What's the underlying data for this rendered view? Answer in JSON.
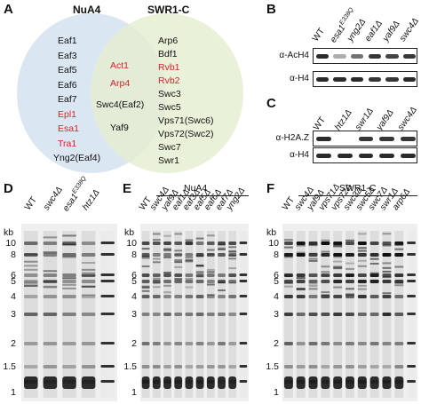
{
  "panels": {
    "A": {
      "letter": "A",
      "left_title": "NuA4",
      "right_title": "SWR1-C",
      "nua4_only": [
        "Eaf1",
        "Eaf3",
        "Eaf5",
        "Eaf6",
        "Eaf7",
        "Epl1",
        "Esa1",
        "Tra1",
        "Yng2(Eaf4)"
      ],
      "nua4_red": [
        "Epl1",
        "Esa1",
        "Tra1"
      ],
      "shared": [
        "Act1",
        "Arp4",
        "Swc4(Eaf2)",
        "Yaf9"
      ],
      "shared_red": [
        "Act1",
        "Arp4"
      ],
      "swr1_only": [
        "Arp6",
        "Bdf1",
        "Rvb1",
        "Rvb2",
        "Swc3",
        "Swc5",
        "Vps71(Swc6)",
        "Vps72(Swc2)",
        "Swc7",
        "Swr1"
      ],
      "swr1_red": [
        "Rvb1",
        "Rvb2"
      ],
      "colors": {
        "left_circle": "#d9e5f2",
        "right_circle": "#e4edcf",
        "highlight": "#d8232a"
      }
    },
    "B": {
      "letter": "B",
      "lanes": [
        "WT",
        "esa1",
        "yng2Δ",
        "eaf1Δ",
        "yaf9Δ",
        "swc4Δ"
      ],
      "esa1_superscript": "E338Q",
      "rows": [
        "α-AcH4",
        "α-H4"
      ]
    },
    "C": {
      "letter": "C",
      "lanes": [
        "WT",
        "htz1Δ",
        "swr1Δ",
        "yaf9Δ",
        "swc4Δ"
      ],
      "rows": [
        "α-H2A.Z",
        "α-H4"
      ]
    },
    "D": {
      "letter": "D",
      "lanes": [
        "WT",
        "swc4Δ",
        "esa1",
        "htz1Δ"
      ],
      "esa1_superscript": "E338Q",
      "kb_label": "kb",
      "kb_ticks": [
        "10",
        "8",
        "6",
        "5",
        "4",
        "3",
        "2",
        "1.5",
        "1"
      ]
    },
    "E": {
      "letter": "E",
      "group": "NuA4",
      "lanes": [
        "WT",
        "swc4Δ",
        "yaf9Δ",
        "eaf1Δ",
        "eaf3Δ",
        "eaf5Δ",
        "eaf6Δ",
        "eaf7Δ",
        "yng2Δ"
      ],
      "kb_label": "kb",
      "kb_ticks": [
        "10",
        "8",
        "6",
        "5",
        "4",
        "3",
        "2",
        "1.5",
        "1"
      ]
    },
    "F": {
      "letter": "F",
      "group": "SWR1-C",
      "lanes": [
        "WT",
        "swc4Δ",
        "yaf9Δ",
        "vps71Δ",
        "vps72Δ",
        "swc3Δ",
        "swc5Δ",
        "swc7Δ",
        "swr1Δ",
        "arp6Δ"
      ],
      "kb_label": "kb",
      "kb_ticks": [
        "10",
        "8",
        "6",
        "5",
        "4",
        "3",
        "2",
        "1.5",
        "1"
      ]
    }
  }
}
